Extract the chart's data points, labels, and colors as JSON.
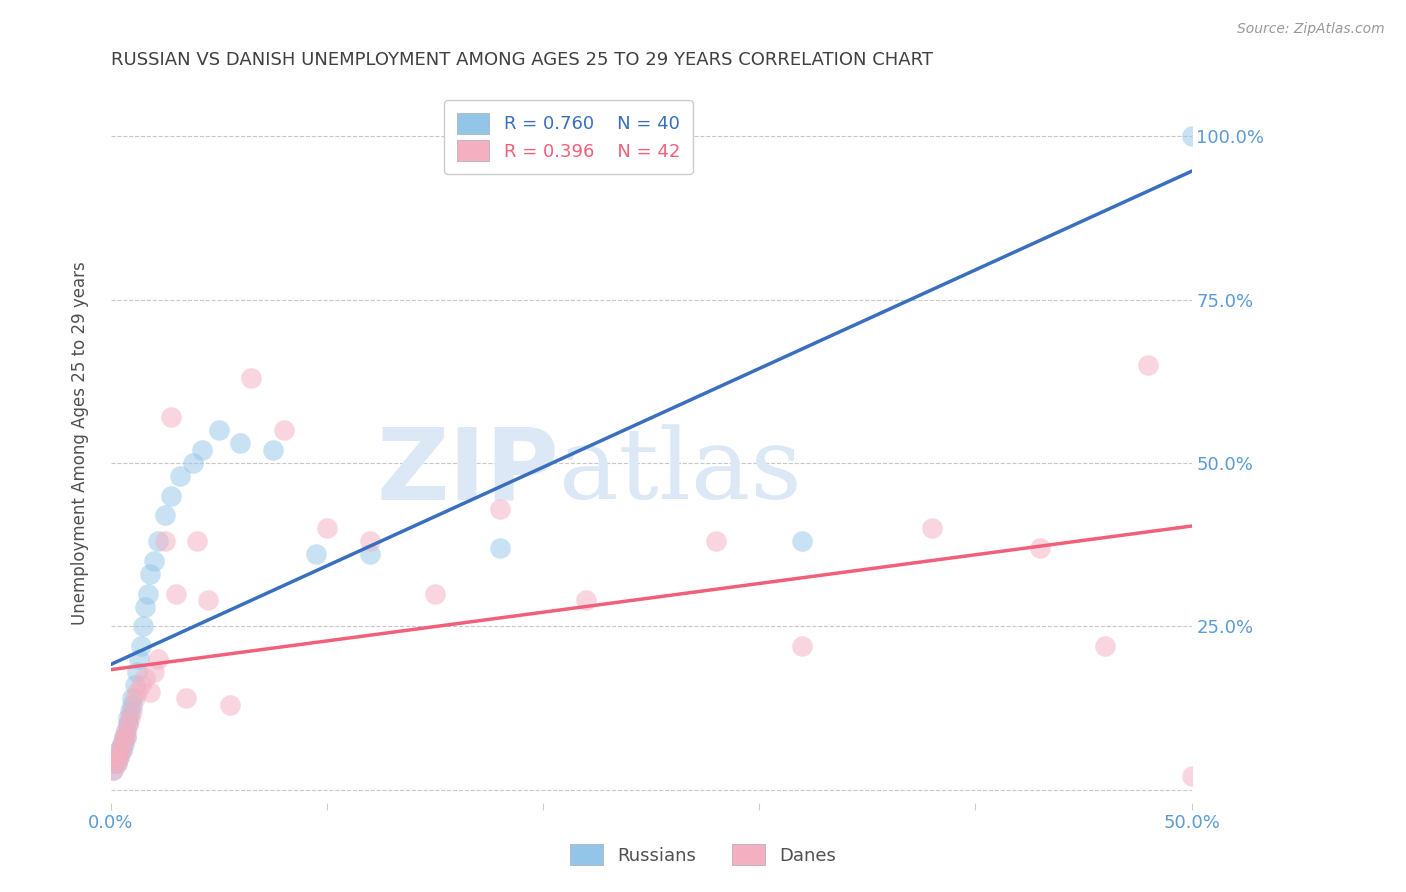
{
  "title": "RUSSIAN VS DANISH UNEMPLOYMENT AMONG AGES 25 TO 29 YEARS CORRELATION CHART",
  "source": "Source: ZipAtlas.com",
  "ylabel": "Unemployment Among Ages 25 to 29 years",
  "xlim": [
    0.0,
    0.5
  ],
  "ylim": [
    -0.02,
    1.08
  ],
  "background_color": "#ffffff",
  "grid_color": "#c8c8c8",
  "title_color": "#404040",
  "axis_tick_color": "#5b9bd5",
  "russian_color": "#93c5e8",
  "danish_color": "#f4afc0",
  "russian_line_color": "#3a6fbe",
  "danish_line_color": "#f0607a",
  "legend_r_russian": "R = 0.760",
  "legend_n_russian": "N = 40",
  "legend_r_danish": "R = 0.396",
  "legend_n_danish": "N = 42",
  "russians_x": [
    0.001,
    0.002,
    0.003,
    0.003,
    0.004,
    0.004,
    0.005,
    0.005,
    0.006,
    0.006,
    0.007,
    0.007,
    0.008,
    0.008,
    0.009,
    0.01,
    0.01,
    0.011,
    0.012,
    0.013,
    0.014,
    0.015,
    0.016,
    0.017,
    0.018,
    0.02,
    0.022,
    0.025,
    0.028,
    0.032,
    0.038,
    0.042,
    0.05,
    0.06,
    0.075,
    0.095,
    0.12,
    0.18,
    0.32,
    0.5
  ],
  "russians_y": [
    0.03,
    0.04,
    0.04,
    0.05,
    0.05,
    0.06,
    0.06,
    0.07,
    0.07,
    0.08,
    0.08,
    0.09,
    0.1,
    0.11,
    0.12,
    0.13,
    0.14,
    0.16,
    0.18,
    0.2,
    0.22,
    0.25,
    0.28,
    0.3,
    0.33,
    0.35,
    0.38,
    0.42,
    0.45,
    0.48,
    0.5,
    0.52,
    0.55,
    0.53,
    0.52,
    0.36,
    0.36,
    0.37,
    0.38,
    1.0
  ],
  "danes_x": [
    0.001,
    0.002,
    0.003,
    0.003,
    0.004,
    0.004,
    0.005,
    0.005,
    0.006,
    0.007,
    0.007,
    0.008,
    0.009,
    0.01,
    0.011,
    0.012,
    0.014,
    0.016,
    0.018,
    0.02,
    0.022,
    0.025,
    0.028,
    0.03,
    0.035,
    0.04,
    0.045,
    0.055,
    0.065,
    0.08,
    0.1,
    0.12,
    0.15,
    0.18,
    0.22,
    0.28,
    0.32,
    0.38,
    0.43,
    0.46,
    0.48,
    0.5
  ],
  "danes_y": [
    0.03,
    0.04,
    0.04,
    0.05,
    0.05,
    0.06,
    0.06,
    0.07,
    0.08,
    0.08,
    0.09,
    0.1,
    0.11,
    0.12,
    0.14,
    0.15,
    0.16,
    0.17,
    0.15,
    0.18,
    0.2,
    0.38,
    0.57,
    0.3,
    0.14,
    0.38,
    0.29,
    0.13,
    0.63,
    0.55,
    0.4,
    0.38,
    0.3,
    0.43,
    0.29,
    0.38,
    0.22,
    0.4,
    0.37,
    0.22,
    0.65,
    0.02
  ],
  "watermark_zip": "ZIP",
  "watermark_atlas": "atlas",
  "watermark_color": "#dce8f5"
}
